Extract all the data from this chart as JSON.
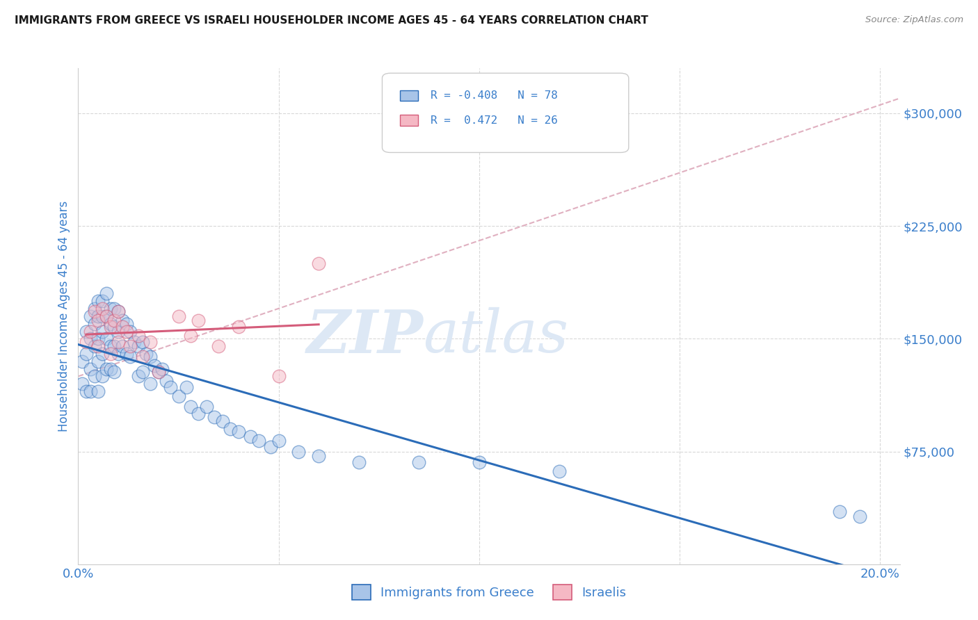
{
  "title": "IMMIGRANTS FROM GREECE VS ISRAELI HOUSEHOLDER INCOME AGES 45 - 64 YEARS CORRELATION CHART",
  "source": "Source: ZipAtlas.com",
  "ylabel": "Householder Income Ages 45 - 64 years",
  "legend_label1": "Immigrants from Greece",
  "legend_label2": "Israelis",
  "R1": -0.408,
  "N1": 78,
  "R2": 0.472,
  "N2": 26,
  "color1": "#a8c4e8",
  "color2": "#f5b8c4",
  "line1_color": "#2b6cb8",
  "line2_color": "#d45c7a",
  "dashed_line_color": "#e0b0c0",
  "xlim": [
    0.0,
    0.205
  ],
  "ylim": [
    0,
    330000
  ],
  "scatter1_x": [
    0.001,
    0.001,
    0.002,
    0.002,
    0.002,
    0.003,
    0.003,
    0.003,
    0.003,
    0.004,
    0.004,
    0.004,
    0.004,
    0.005,
    0.005,
    0.005,
    0.005,
    0.005,
    0.006,
    0.006,
    0.006,
    0.006,
    0.006,
    0.007,
    0.007,
    0.007,
    0.007,
    0.008,
    0.008,
    0.008,
    0.008,
    0.009,
    0.009,
    0.009,
    0.009,
    0.01,
    0.01,
    0.01,
    0.011,
    0.011,
    0.012,
    0.012,
    0.013,
    0.013,
    0.014,
    0.015,
    0.015,
    0.016,
    0.016,
    0.017,
    0.018,
    0.018,
    0.019,
    0.02,
    0.021,
    0.022,
    0.023,
    0.025,
    0.027,
    0.028,
    0.03,
    0.032,
    0.034,
    0.036,
    0.038,
    0.04,
    0.043,
    0.045,
    0.048,
    0.05,
    0.055,
    0.06,
    0.07,
    0.085,
    0.1,
    0.12,
    0.19,
    0.195
  ],
  "scatter1_y": [
    135000,
    120000,
    155000,
    140000,
    115000,
    165000,
    150000,
    130000,
    115000,
    170000,
    160000,
    145000,
    125000,
    175000,
    165000,
    150000,
    135000,
    115000,
    175000,
    165000,
    155000,
    140000,
    125000,
    180000,
    165000,
    150000,
    130000,
    170000,
    160000,
    145000,
    130000,
    170000,
    158000,
    145000,
    128000,
    168000,
    155000,
    140000,
    162000,
    145000,
    160000,
    140000,
    155000,
    138000,
    148000,
    145000,
    125000,
    148000,
    128000,
    140000,
    138000,
    120000,
    132000,
    128000,
    130000,
    122000,
    118000,
    112000,
    118000,
    105000,
    100000,
    105000,
    98000,
    95000,
    90000,
    88000,
    85000,
    82000,
    78000,
    82000,
    75000,
    72000,
    68000,
    68000,
    68000,
    62000,
    35000,
    32000
  ],
  "scatter2_x": [
    0.002,
    0.003,
    0.004,
    0.005,
    0.005,
    0.006,
    0.007,
    0.008,
    0.008,
    0.009,
    0.01,
    0.01,
    0.011,
    0.012,
    0.013,
    0.015,
    0.016,
    0.018,
    0.02,
    0.025,
    0.028,
    0.03,
    0.035,
    0.04,
    0.05,
    0.06
  ],
  "scatter2_y": [
    148000,
    155000,
    168000,
    162000,
    145000,
    170000,
    165000,
    158000,
    140000,
    162000,
    168000,
    148000,
    158000,
    155000,
    145000,
    152000,
    138000,
    148000,
    128000,
    165000,
    152000,
    162000,
    145000,
    158000,
    125000,
    200000
  ],
  "bg_color": "#ffffff",
  "grid_color": "#d8d8d8",
  "title_color": "#1a1a1a",
  "axis_color": "#3a7ecb",
  "watermark_zip": "ZIP",
  "watermark_atlas": "atlas",
  "watermark_color": "#dde8f5"
}
